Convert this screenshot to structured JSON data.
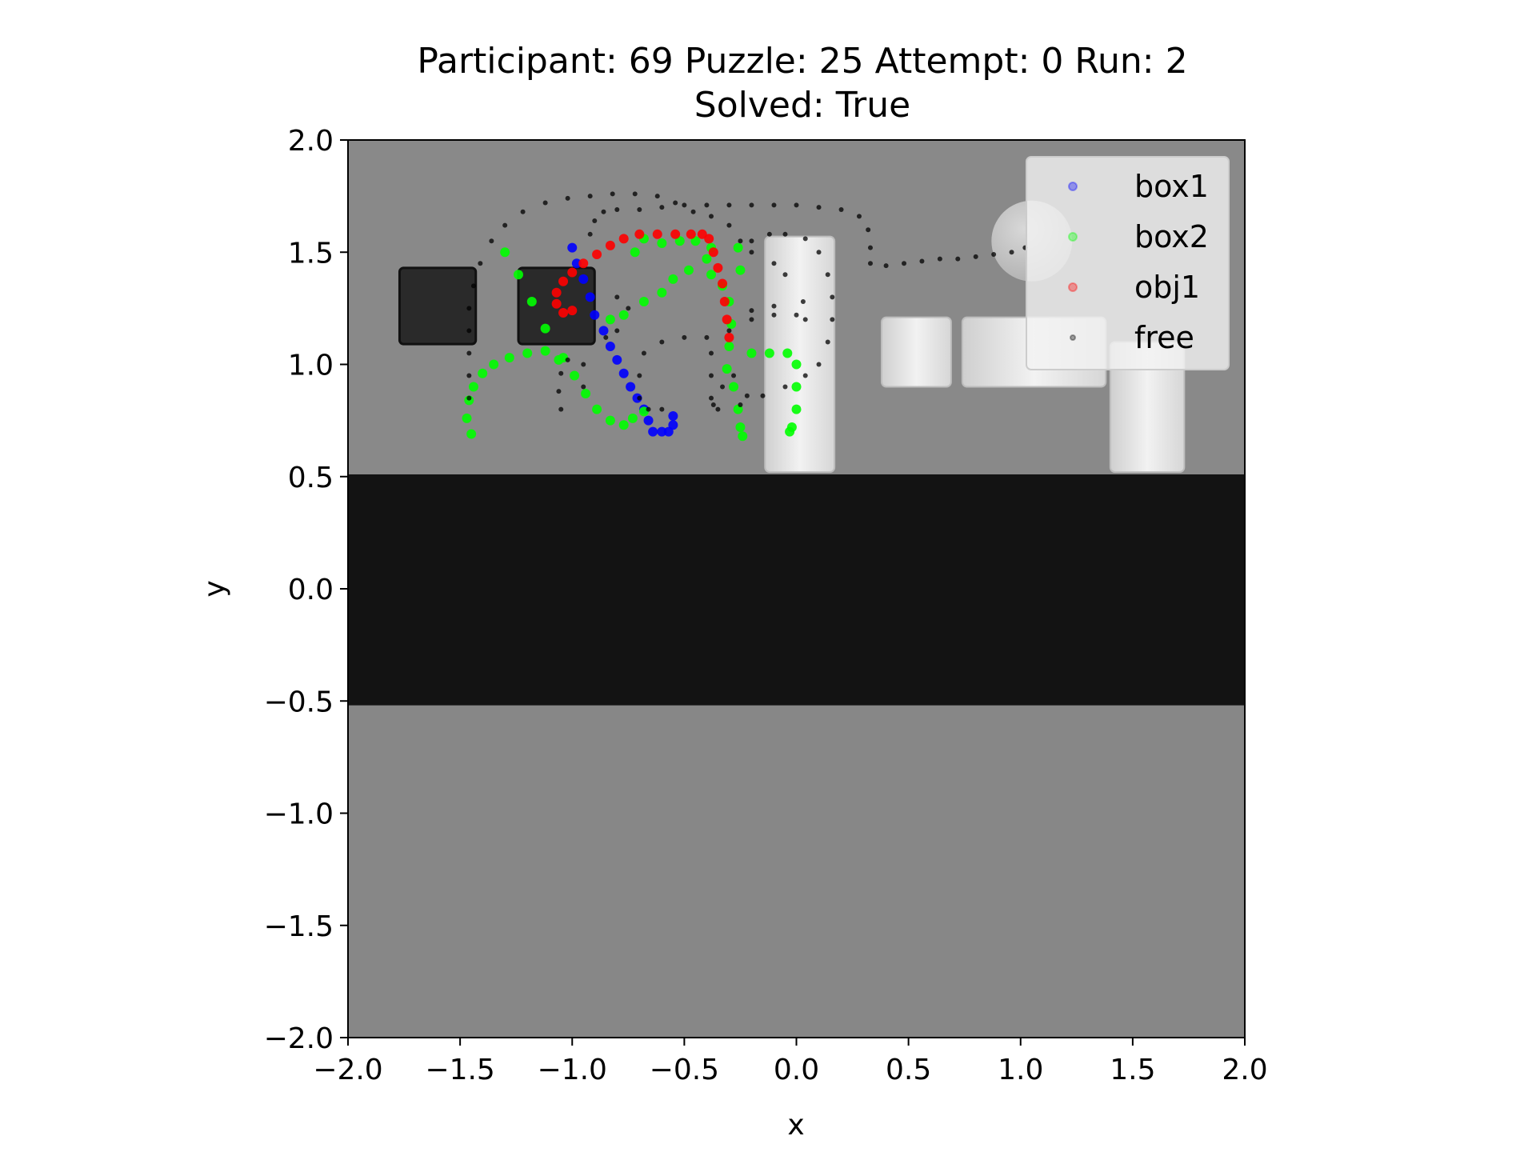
{
  "chart_data": {
    "type": "scatter",
    "title_line1": "Participant: 69 Puzzle: 25 Attempt: 0 Run: 2",
    "title_line2": "Solved: True",
    "xlabel": "x",
    "ylabel": "y",
    "xlim": [
      -2.0,
      2.0
    ],
    "ylim": [
      -2.0,
      2.0
    ],
    "xticks": [
      "−2.0",
      "−1.5",
      "−1.0",
      "−0.5",
      "0.0",
      "0.5",
      "1.0",
      "1.5",
      "2.0"
    ],
    "yticks": [
      "2.0",
      "1.5",
      "1.0",
      "0.5",
      "0.0",
      "−0.5",
      "−1.0",
      "−1.5",
      "−2.0"
    ],
    "legend_position": "top-right",
    "background_scene": {
      "colors": {
        "upper_floor": "#898989",
        "wall": "#131313",
        "lower_floor": "#878787"
      },
      "wall_y_range": [
        -0.52,
        0.51
      ],
      "dark_boxes": [
        {
          "center": [
            -1.6,
            1.26
          ],
          "half": 0.17
        },
        {
          "center": [
            -1.07,
            1.26
          ],
          "half": 0.17
        }
      ],
      "light_blocks": [
        {
          "x": [
            -0.14,
            0.17
          ],
          "y": [
            0.52,
            1.57
          ]
        },
        {
          "x": [
            0.38,
            0.69
          ],
          "y": [
            0.9,
            1.21
          ]
        },
        {
          "x": [
            0.74,
            1.38
          ],
          "y": [
            0.9,
            1.21
          ]
        },
        {
          "x": [
            1.4,
            1.73
          ],
          "y": [
            0.52,
            1.1
          ]
        }
      ],
      "ball": {
        "center": [
          1.05,
          1.55
        ],
        "radius": 0.18
      }
    },
    "series": [
      {
        "name": "box1",
        "color": "#0000ff",
        "points": [
          [
            -1.0,
            1.52
          ],
          [
            -0.98,
            1.45
          ],
          [
            -0.95,
            1.38
          ],
          [
            -0.92,
            1.3
          ],
          [
            -0.9,
            1.22
          ],
          [
            -0.86,
            1.15
          ],
          [
            -0.83,
            1.08
          ],
          [
            -0.8,
            1.02
          ],
          [
            -0.77,
            0.96
          ],
          [
            -0.74,
            0.9
          ],
          [
            -0.71,
            0.85
          ],
          [
            -0.68,
            0.8
          ],
          [
            -0.66,
            0.75
          ],
          [
            -0.64,
            0.7
          ],
          [
            -0.6,
            0.7
          ],
          [
            -0.57,
            0.7
          ],
          [
            -0.55,
            0.73
          ],
          [
            -0.55,
            0.77
          ]
        ]
      },
      {
        "name": "box2",
        "color": "#00ff00",
        "points": [
          [
            -1.45,
            0.69
          ],
          [
            -1.47,
            0.76
          ],
          [
            -1.46,
            0.84
          ],
          [
            -1.44,
            0.9
          ],
          [
            -1.4,
            0.96
          ],
          [
            -1.35,
            1.0
          ],
          [
            -1.28,
            1.03
          ],
          [
            -1.2,
            1.05
          ],
          [
            -1.12,
            1.06
          ],
          [
            -1.04,
            1.03
          ],
          [
            -0.99,
            0.95
          ],
          [
            -0.94,
            0.87
          ],
          [
            -0.89,
            0.8
          ],
          [
            -0.83,
            0.75
          ],
          [
            -0.77,
            0.73
          ],
          [
            -0.73,
            0.76
          ],
          [
            -0.68,
            0.79
          ],
          [
            -1.3,
            1.5
          ],
          [
            -1.24,
            1.4
          ],
          [
            -1.18,
            1.28
          ],
          [
            -1.12,
            1.16
          ],
          [
            -1.06,
            1.02
          ],
          [
            -0.72,
            1.5
          ],
          [
            -0.68,
            1.56
          ],
          [
            -0.6,
            1.54
          ],
          [
            -0.52,
            1.55
          ],
          [
            -0.45,
            1.55
          ],
          [
            -0.38,
            1.52
          ],
          [
            -0.4,
            1.47
          ],
          [
            -0.48,
            1.42
          ],
          [
            -0.55,
            1.38
          ],
          [
            -0.6,
            1.32
          ],
          [
            -0.68,
            1.28
          ],
          [
            -0.77,
            1.22
          ],
          [
            -0.83,
            1.2
          ],
          [
            -0.38,
            1.4
          ],
          [
            -0.33,
            1.35
          ],
          [
            -0.3,
            1.28
          ],
          [
            -0.29,
            1.18
          ],
          [
            -0.3,
            1.08
          ],
          [
            -0.31,
            0.98
          ],
          [
            -0.28,
            0.9
          ],
          [
            -0.26,
            0.8
          ],
          [
            -0.25,
            0.72
          ],
          [
            -0.24,
            0.68
          ],
          [
            -0.25,
            1.42
          ],
          [
            -0.26,
            1.52
          ],
          [
            -0.2,
            1.05
          ],
          [
            -0.12,
            1.05
          ],
          [
            -0.04,
            1.05
          ],
          [
            0.0,
            1.0
          ],
          [
            0.0,
            0.9
          ],
          [
            0.0,
            0.8
          ],
          [
            -0.02,
            0.72
          ],
          [
            -0.03,
            0.7
          ]
        ]
      },
      {
        "name": "obj1",
        "color": "#ff0000",
        "points": [
          [
            -1.0,
            1.24
          ],
          [
            -1.04,
            1.23
          ],
          [
            -1.07,
            1.27
          ],
          [
            -1.07,
            1.32
          ],
          [
            -1.04,
            1.37
          ],
          [
            -1.0,
            1.41
          ],
          [
            -0.95,
            1.45
          ],
          [
            -0.89,
            1.49
          ],
          [
            -0.83,
            1.53
          ],
          [
            -0.77,
            1.56
          ],
          [
            -0.7,
            1.58
          ],
          [
            -0.62,
            1.58
          ],
          [
            -0.54,
            1.58
          ],
          [
            -0.47,
            1.58
          ],
          [
            -0.42,
            1.58
          ],
          [
            -0.39,
            1.56
          ],
          [
            -0.37,
            1.5
          ],
          [
            -0.35,
            1.43
          ],
          [
            -0.33,
            1.36
          ],
          [
            -0.32,
            1.28
          ],
          [
            -0.31,
            1.2
          ],
          [
            -0.3,
            1.12
          ]
        ]
      },
      {
        "name": "free",
        "color": "#000000",
        "points": [
          [
            -1.46,
            0.85
          ],
          [
            -1.46,
            0.95
          ],
          [
            -1.46,
            1.05
          ],
          [
            -1.46,
            1.15
          ],
          [
            -1.46,
            1.25
          ],
          [
            -1.44,
            1.35
          ],
          [
            -1.41,
            1.45
          ],
          [
            -1.36,
            1.55
          ],
          [
            -1.3,
            1.62
          ],
          [
            -1.22,
            1.68
          ],
          [
            -1.12,
            1.72
          ],
          [
            -1.02,
            1.74
          ],
          [
            -0.92,
            1.75
          ],
          [
            -0.82,
            1.76
          ],
          [
            -0.72,
            1.76
          ],
          [
            -0.62,
            1.75
          ],
          [
            -0.54,
            1.72
          ],
          [
            -0.46,
            1.68
          ],
          [
            -0.38,
            1.66
          ],
          [
            -0.3,
            1.62
          ],
          [
            -0.25,
            1.55
          ],
          [
            -0.2,
            1.5
          ],
          [
            -0.1,
            1.45
          ],
          [
            -0.05,
            1.4
          ],
          [
            -0.92,
            1.58
          ],
          [
            -0.9,
            1.64
          ],
          [
            -0.86,
            1.68
          ],
          [
            -0.8,
            1.69
          ],
          [
            -0.7,
            1.69
          ],
          [
            -0.6,
            1.7
          ],
          [
            -0.5,
            1.71
          ],
          [
            -0.4,
            1.71
          ],
          [
            -0.3,
            1.71
          ],
          [
            -0.2,
            1.71
          ],
          [
            -0.1,
            1.71
          ],
          [
            0.0,
            1.71
          ],
          [
            0.1,
            1.7
          ],
          [
            0.2,
            1.69
          ],
          [
            0.28,
            1.66
          ],
          [
            0.32,
            1.6
          ],
          [
            0.33,
            1.52
          ],
          [
            0.33,
            1.45
          ],
          [
            0.4,
            1.44
          ],
          [
            0.48,
            1.45
          ],
          [
            0.56,
            1.46
          ],
          [
            0.64,
            1.47
          ],
          [
            0.72,
            1.47
          ],
          [
            0.8,
            1.48
          ],
          [
            0.88,
            1.49
          ],
          [
            0.96,
            1.5
          ],
          [
            1.02,
            1.52
          ],
          [
            -0.2,
            1.55
          ],
          [
            -0.12,
            1.58
          ],
          [
            -0.05,
            1.58
          ],
          [
            0.04,
            1.56
          ],
          [
            0.1,
            1.5
          ],
          [
            0.14,
            1.4
          ],
          [
            0.16,
            1.3
          ],
          [
            0.16,
            1.2
          ],
          [
            0.14,
            1.1
          ],
          [
            0.1,
            1.0
          ],
          [
            0.04,
            0.95
          ],
          [
            -0.05,
            0.9
          ],
          [
            -0.15,
            0.86
          ],
          [
            -0.25,
            0.82
          ],
          [
            -0.35,
            0.8
          ],
          [
            -0.38,
            0.85
          ],
          [
            -0.38,
            0.95
          ],
          [
            -0.38,
            1.05
          ],
          [
            -0.4,
            1.12
          ],
          [
            -0.5,
            1.12
          ],
          [
            -0.6,
            1.1
          ],
          [
            -0.68,
            1.05
          ],
          [
            -0.7,
            0.95
          ],
          [
            -0.7,
            0.85
          ],
          [
            -0.66,
            0.8
          ],
          [
            -0.6,
            0.8
          ],
          [
            -1.05,
            0.8
          ],
          [
            -1.06,
            0.88
          ],
          [
            -1.05,
            0.96
          ],
          [
            -1.02,
            1.02
          ],
          [
            -0.8,
            1.3
          ],
          [
            -0.75,
            1.25
          ],
          [
            -0.8,
            1.15
          ],
          [
            -0.85,
            1.12
          ],
          [
            -0.2,
            1.2
          ],
          [
            -0.1,
            1.22
          ],
          [
            0.0,
            1.22
          ],
          [
            0.04,
            1.2
          ],
          [
            0.03,
            1.28
          ],
          [
            -0.1,
            1.26
          ],
          [
            -0.2,
            1.24
          ],
          [
            -0.3,
            1.15
          ],
          [
            -0.37,
            0.82
          ],
          [
            -0.33,
            0.9
          ],
          [
            -0.28,
            0.95
          ],
          [
            -0.22,
            0.86
          ],
          [
            -0.95,
            1.0
          ],
          [
            -0.95,
            0.9
          ]
        ]
      }
    ]
  }
}
